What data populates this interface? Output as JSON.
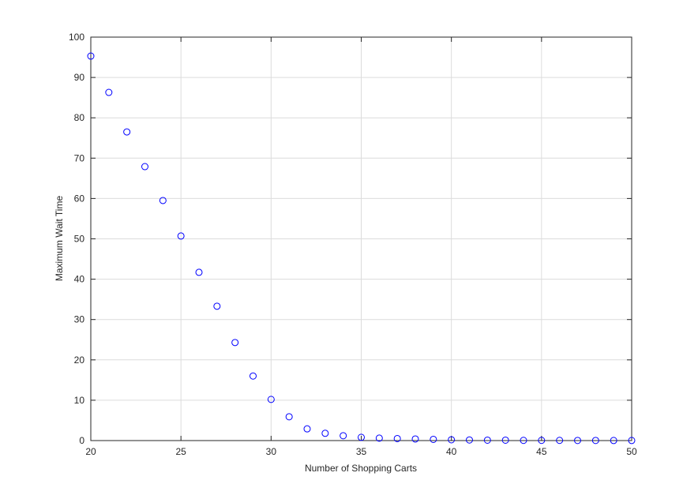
{
  "chart_data": {
    "type": "scatter",
    "title": "",
    "xlabel": "Number of Shopping Carts",
    "ylabel": "Maximum Wait Time",
    "xlim": [
      20,
      50
    ],
    "ylim": [
      0,
      100
    ],
    "xticks": [
      20,
      25,
      30,
      35,
      40,
      45,
      50
    ],
    "yticks": [
      0,
      10,
      20,
      30,
      40,
      50,
      60,
      70,
      80,
      90,
      100
    ],
    "grid": true,
    "marker": "circle-open",
    "color": "#0000ff",
    "x": [
      20,
      21,
      22,
      23,
      24,
      25,
      26,
      27,
      28,
      29,
      30,
      31,
      32,
      33,
      34,
      35,
      36,
      37,
      38,
      39,
      40,
      41,
      42,
      43,
      44,
      45,
      46,
      47,
      48,
      49,
      50
    ],
    "y": [
      95.3,
      86.3,
      76.5,
      67.9,
      59.5,
      50.7,
      41.7,
      33.3,
      24.3,
      16.0,
      10.2,
      5.9,
      2.9,
      1.8,
      1.2,
      0.8,
      0.6,
      0.5,
      0.4,
      0.3,
      0.2,
      0.15,
      0.1,
      0.1,
      0.05,
      0.05,
      0.05,
      0.03,
      0.03,
      0.02,
      0.02
    ]
  }
}
